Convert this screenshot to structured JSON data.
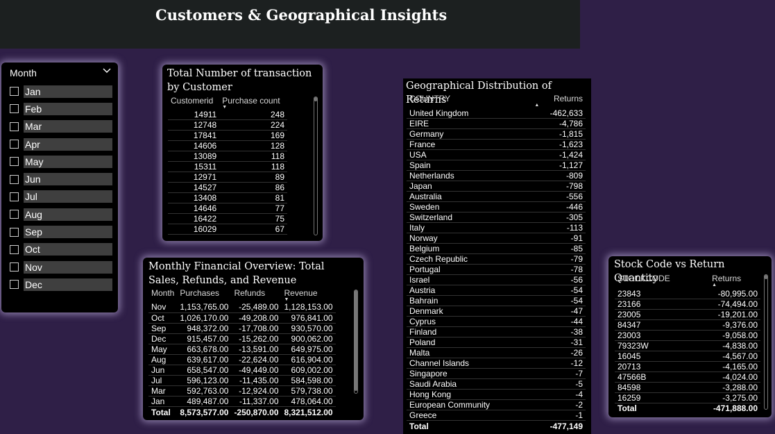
{
  "page_title": "Customers & Geographical Insights",
  "slicer": {
    "label": "Month",
    "icon": "chevron-down-icon",
    "items": [
      "Jan",
      "Feb",
      "Mar",
      "Apr",
      "May",
      "Jun",
      "Jul",
      "Aug",
      "Sep",
      "Oct",
      "Nov",
      "Dec"
    ]
  },
  "transactions": {
    "title": "Total Number of transaction by Customer",
    "columns": [
      "Customerid",
      "Purchase count"
    ],
    "rows": [
      [
        "14911",
        "248"
      ],
      [
        "12748",
        "224"
      ],
      [
        "17841",
        "169"
      ],
      [
        "14606",
        "128"
      ],
      [
        "13089",
        "118"
      ],
      [
        "15311",
        "118"
      ],
      [
        "12971",
        "89"
      ],
      [
        "14527",
        "86"
      ],
      [
        "13408",
        "81"
      ],
      [
        "14646",
        "77"
      ],
      [
        "16422",
        "75"
      ],
      [
        "16029",
        "67"
      ]
    ]
  },
  "monthly": {
    "title": "Monthly Financial Overview: Total Sales, Refunds, and Revenue",
    "columns": [
      "Month",
      "Purchases",
      "Refunds",
      "Revenue"
    ],
    "rows": [
      [
        "Nov",
        "1,153,765.00",
        "-25,489.00",
        "1,128,153.00"
      ],
      [
        "Oct",
        "1,026,170.00",
        "-49,208.00",
        "976,841.00"
      ],
      [
        "Sep",
        "948,372.00",
        "-17,708.00",
        "930,570.00"
      ],
      [
        "Dec",
        "915,457.00",
        "-15,262.00",
        "900,062.00"
      ],
      [
        "May",
        "663,678.00",
        "-13,591.00",
        "649,975.00"
      ],
      [
        "Aug",
        "639,617.00",
        "-22,624.00",
        "616,904.00"
      ],
      [
        "Jun",
        "658,547.00",
        "-49,449.00",
        "609,002.00"
      ],
      [
        "Jul",
        "596,123.00",
        "-11,435.00",
        "584,598.00"
      ],
      [
        "Mar",
        "592,763.00",
        "-12,924.00",
        "579,738.00"
      ],
      [
        "Jan",
        "489,487.00",
        "-11,337.00",
        "478,064.00"
      ]
    ],
    "total": [
      "Total",
      "8,573,577.00",
      "-250,870.00",
      "8,321,512.00"
    ]
  },
  "geo": {
    "title": "Geographical Distribution of Returns",
    "columns": [
      "COUNTRY",
      "Returns"
    ],
    "rows": [
      [
        "United Kingdom",
        "-462,633"
      ],
      [
        "EIRE",
        "-4,786"
      ],
      [
        "Germany",
        "-1,815"
      ],
      [
        "France",
        "-1,623"
      ],
      [
        "USA",
        "-1,424"
      ],
      [
        "Spain",
        "-1,127"
      ],
      [
        "Netherlands",
        "-809"
      ],
      [
        "Japan",
        "-798"
      ],
      [
        "Australia",
        "-556"
      ],
      [
        "Sweden",
        "-446"
      ],
      [
        "Switzerland",
        "-305"
      ],
      [
        "Italy",
        "-113"
      ],
      [
        "Norway",
        "-91"
      ],
      [
        "Belgium",
        "-85"
      ],
      [
        "Czech Republic",
        "-79"
      ],
      [
        "Portugal",
        "-78"
      ],
      [
        "Israel",
        "-56"
      ],
      [
        "Austria",
        "-54"
      ],
      [
        "Bahrain",
        "-54"
      ],
      [
        "Denmark",
        "-47"
      ],
      [
        "Cyprus",
        "-44"
      ],
      [
        "Finland",
        "-38"
      ],
      [
        "Poland",
        "-31"
      ],
      [
        "Malta",
        "-26"
      ],
      [
        "Channel Islands",
        "-12"
      ],
      [
        "Singapore",
        "-7"
      ],
      [
        "Saudi Arabia",
        "-5"
      ],
      [
        "Hong Kong",
        "-4"
      ],
      [
        "European Community",
        "-2"
      ],
      [
        "Greece",
        "-1"
      ]
    ],
    "total": [
      "Total",
      "-477,149"
    ]
  },
  "stock": {
    "title": "Stock Code vs Return Quantity",
    "columns": [
      "STOCKCODE",
      "Returns"
    ],
    "rows": [
      [
        "23843",
        "-80,995.00"
      ],
      [
        "23166",
        "-74,494.00"
      ],
      [
        "23005",
        "-19,201.00"
      ],
      [
        "84347",
        "-9,376.00"
      ],
      [
        "23003",
        "-9,058.00"
      ],
      [
        "79323W",
        "-4,838.00"
      ],
      [
        "16045",
        "-4,567.00"
      ],
      [
        "20713",
        "-4,165.00"
      ],
      [
        "47566B",
        "-4,024.00"
      ],
      [
        "84598",
        "-3,288.00"
      ],
      [
        "16259",
        "-3,275.00"
      ]
    ],
    "total": [
      "Total",
      "-471,888.00"
    ]
  },
  "colors": {
    "background": "#2f1f47",
    "title_bar": "#1c2020",
    "card": "#000000",
    "slicer_item": "#3f3f3f"
  }
}
